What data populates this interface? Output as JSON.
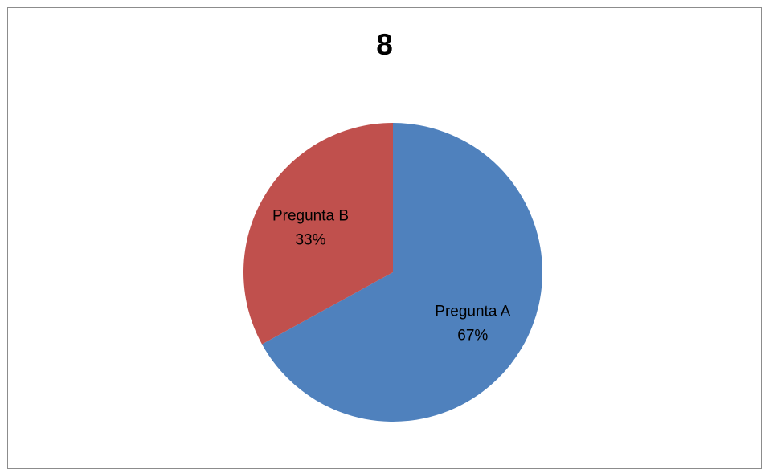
{
  "chart_data": {
    "type": "pie",
    "title": "8",
    "categories": [
      "Pregunta  A",
      "Pregunta  B"
    ],
    "values": [
      67,
      33
    ],
    "labels": [
      "67%",
      "33%"
    ],
    "colors": [
      "#4f81bd",
      "#c0504d"
    ],
    "legend": "none"
  }
}
